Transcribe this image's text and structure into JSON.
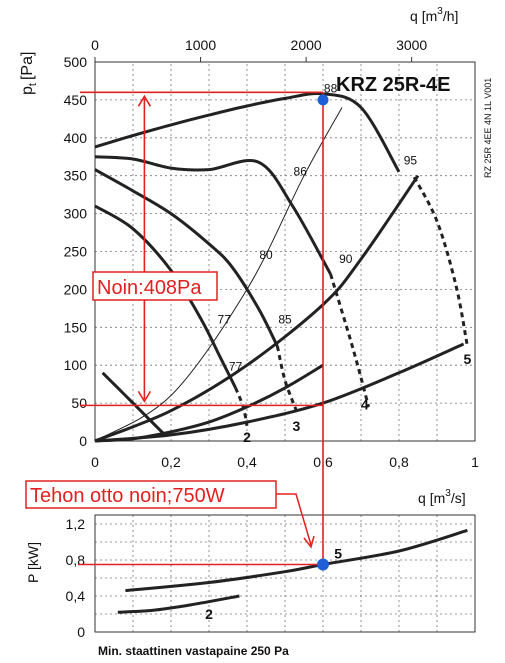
{
  "chart_data": [
    {
      "type": "line",
      "title": "KRZ 25R-4E",
      "side_code": "RZ 25R 4EE 4N 1L V001",
      "ylabel": "p",
      "ylabel_sub": "t",
      "ylabel_unit": "[Pa]",
      "xlabel": "q",
      "xlabel_unit_bottom": "[m",
      "xlabel_unit_bottom_sup": "3",
      "xlabel_unit_bottom_end": "/s]",
      "xlabel_unit_top": "[m",
      "xlabel_unit_top_sup": "3",
      "xlabel_unit_top_end": "/h]",
      "xlim": [
        0,
        1
      ],
      "ylim": [
        0,
        500
      ],
      "x_ticks": [
        "0",
        "0,2",
        "0,4",
        "0,6",
        "0,8",
        "1"
      ],
      "x_tick_values": [
        0,
        0.2,
        0.4,
        0.6,
        0.8,
        1
      ],
      "x_top_ticks": [
        "0",
        "1000",
        "2000",
        "3000"
      ],
      "x_top_tick_values": [
        0,
        1000,
        2000,
        3000
      ],
      "y_ticks": [
        "0",
        "50",
        "100",
        "150",
        "200",
        "250",
        "300",
        "350",
        "400",
        "450",
        "500"
      ],
      "y_tick_values": [
        0,
        50,
        100,
        150,
        200,
        250,
        300,
        350,
        400,
        450,
        500
      ],
      "grid": true,
      "series": [
        {
          "name": "5",
          "style": "solid",
          "x": [
            0,
            0.1,
            0.2,
            0.3,
            0.4,
            0.5,
            0.6,
            0.7,
            0.8
          ],
          "y": [
            388,
            403,
            417,
            430,
            442,
            452,
            458,
            440,
            355
          ]
        },
        {
          "name": "5",
          "style": "dashed",
          "x": [
            0.84,
            0.9,
            0.95,
            0.98
          ],
          "y": [
            348,
            290,
            205,
            125
          ]
        },
        {
          "name": "4",
          "style": "solid",
          "x": [
            0,
            0.1,
            0.2,
            0.3,
            0.43,
            0.52,
            0.62
          ],
          "y": [
            375,
            372,
            360,
            358,
            368,
            310,
            220
          ]
        },
        {
          "name": "4",
          "style": "dashed",
          "x": [
            0.62,
            0.68,
            0.72
          ],
          "y": [
            220,
            120,
            45
          ]
        },
        {
          "name": "3",
          "style": "solid",
          "x": [
            0,
            0.1,
            0.2,
            0.3,
            0.36,
            0.43,
            0.48
          ],
          "y": [
            358,
            330,
            300,
            260,
            230,
            175,
            125
          ]
        },
        {
          "name": "3",
          "style": "dashed",
          "x": [
            0.48,
            0.5,
            0.53
          ],
          "y": [
            125,
            80,
            40
          ]
        },
        {
          "name": "2",
          "style": "solid",
          "x": [
            0,
            0.1,
            0.2,
            0.28,
            0.33,
            0.37
          ],
          "y": [
            310,
            280,
            225,
            160,
            110,
            70
          ]
        },
        {
          "name": "2",
          "style": "dashed",
          "x": [
            0.37,
            0.39,
            0.4
          ],
          "y": [
            70,
            45,
            20
          ]
        },
        {
          "name": "1",
          "style": "solid",
          "x": [
            0.02,
            0.08,
            0.14,
            0.18
          ],
          "y": [
            90,
            60,
            30,
            10
          ]
        },
        {
          "name": "system-4",
          "style": "solid",
          "x": [
            0,
            0.2,
            0.4,
            0.6,
            0.8,
            0.97
          ],
          "y": [
            0,
            8,
            25,
            50,
            90,
            128
          ]
        },
        {
          "name": "system-medium",
          "style": "solid",
          "x": [
            0,
            0.2,
            0.4,
            0.6,
            0.7,
            0.85
          ],
          "y": [
            0,
            40,
            100,
            180,
            240,
            350
          ]
        },
        {
          "name": "system-steep",
          "style": "thin",
          "x": [
            0,
            0.2,
            0.4,
            0.55,
            0.65
          ],
          "y": [
            0,
            60,
            200,
            350,
            440
          ]
        },
        {
          "name": "system-low",
          "style": "solid",
          "x": [
            0,
            0.1,
            0.2,
            0.3,
            0.4,
            0.5,
            0.6
          ],
          "y": [
            0,
            3,
            12,
            25,
            45,
            70,
            100
          ]
        }
      ],
      "efficiency_labels": [
        {
          "text": "88",
          "x": 0.62,
          "y": 460
        },
        {
          "text": "86",
          "x": 0.54,
          "y": 350
        },
        {
          "text": "95",
          "x": 0.83,
          "y": 365
        },
        {
          "text": "90",
          "x": 0.66,
          "y": 235
        },
        {
          "text": "80",
          "x": 0.45,
          "y": 240
        },
        {
          "text": "85",
          "x": 0.5,
          "y": 155
        },
        {
          "text": "77",
          "x": 0.34,
          "y": 155
        },
        {
          "text": "77",
          "x": 0.37,
          "y": 93
        }
      ],
      "curve_labels": [
        {
          "text": "5",
          "x": 0.98,
          "y": 108
        },
        {
          "text": "4",
          "x": 0.71,
          "y": 48
        },
        {
          "text": "3",
          "x": 0.53,
          "y": 20
        },
        {
          "text": "2",
          "x": 0.4,
          "y": 5
        }
      ],
      "operating_point": {
        "x": 0.6,
        "y": 450
      },
      "annotations": {
        "pressure_text": "Noin:408Pa",
        "pressure_top": 460,
        "pressure_bottom": 47,
        "pressure_marker_x": 0.13,
        "power_text": "Tehon otto noin;750W"
      }
    },
    {
      "type": "line",
      "ylabel": "P",
      "ylabel_unit": "[kW]",
      "xlim": [
        0,
        1
      ],
      "ylim": [
        0,
        1.3
      ],
      "y_ticks": [
        "0",
        "0,4",
        "0,8",
        "1,2"
      ],
      "y_tick_values": [
        0,
        0.4,
        0.8,
        1.2
      ],
      "y_minor_values": [
        0.2,
        0.6,
        1.0
      ],
      "grid": true,
      "series": [
        {
          "name": "5",
          "style": "solid",
          "x": [
            0.08,
            0.3,
            0.5,
            0.6,
            0.8,
            0.98
          ],
          "y": [
            0.46,
            0.55,
            0.67,
            0.75,
            0.9,
            1.13
          ]
        },
        {
          "name": "2",
          "style": "solid",
          "x": [
            0.06,
            0.15,
            0.25,
            0.38
          ],
          "y": [
            0.22,
            0.24,
            0.3,
            0.4
          ]
        }
      ],
      "curve_labels": [
        {
          "text": "5",
          "x": 0.64,
          "y": 0.87
        },
        {
          "text": "2",
          "x": 0.3,
          "y": 0.2
        }
      ],
      "operating_point": {
        "x": 0.6,
        "y": 0.75
      }
    }
  ],
  "footer": "Min. staattinen vastapaine 250 Pa",
  "colors": {
    "annotation": "#e32020",
    "point": "#1e5fd8",
    "curve": "#222222"
  }
}
